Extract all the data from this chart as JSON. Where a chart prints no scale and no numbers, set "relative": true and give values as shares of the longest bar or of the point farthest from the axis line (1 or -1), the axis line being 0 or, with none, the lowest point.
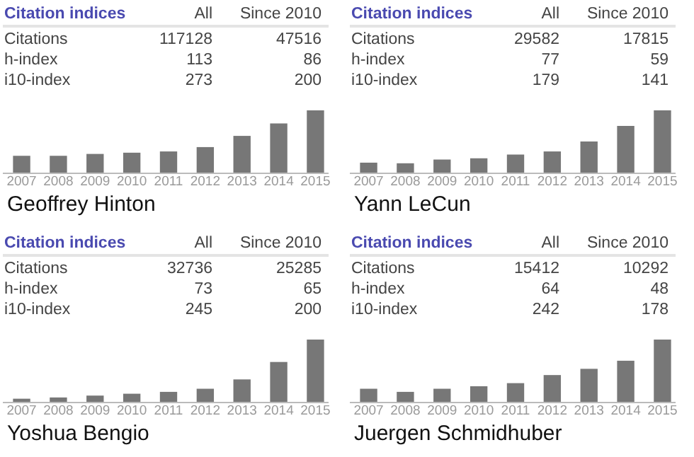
{
  "chart_data": [
    {
      "type": "bar",
      "title": "Citation indices",
      "xlabel": "Geoffrey Hinton",
      "relative": true,
      "color": "#777777",
      "categories": [
        "2007",
        "2008",
        "2009",
        "2010",
        "2011",
        "2012",
        "2013",
        "2014",
        "2015"
      ],
      "values": [
        0.27,
        0.27,
        0.3,
        0.32,
        0.34,
        0.41,
        0.59,
        0.79,
        1
      ],
      "annotations": [
        "All",
        "Since 2010",
        "Citations",
        "117128",
        "47516",
        "h-index",
        "113",
        "86",
        "i10-index",
        "273",
        "200"
      ]
    },
    {
      "type": "bar",
      "title": "Citation indices",
      "xlabel": "Yann LeCun",
      "relative": true,
      "color": "#777777",
      "categories": [
        "2007",
        "2008",
        "2009",
        "2010",
        "2011",
        "2012",
        "2013",
        "2014",
        "2015"
      ],
      "values": [
        0.16,
        0.15,
        0.21,
        0.23,
        0.29,
        0.34,
        0.5,
        0.75,
        1
      ],
      "annotations": [
        "All",
        "Since 2010",
        "Citations",
        "29582",
        "17815",
        "h-index",
        "77",
        "59",
        "i10-index",
        "179",
        "141"
      ]
    },
    {
      "type": "bar",
      "title": "Citation indices",
      "xlabel": "Yoshua Bengio",
      "relative": true,
      "color": "#777777",
      "categories": [
        "2007",
        "2008",
        "2009",
        "2010",
        "2011",
        "2012",
        "2013",
        "2014",
        "2015"
      ],
      "values": [
        0.05,
        0.07,
        0.1,
        0.13,
        0.16,
        0.21,
        0.36,
        0.64,
        1
      ],
      "annotations": [
        "All",
        "Since 2010",
        "Citations",
        "32736",
        "25285",
        "h-index",
        "73",
        "65",
        "i10-index",
        "245",
        "200"
      ]
    },
    {
      "type": "bar",
      "title": "Citation indices",
      "xlabel": "Juergen Schmidhuber",
      "relative": true,
      "color": "#777777",
      "categories": [
        "2007",
        "2008",
        "2009",
        "2010",
        "2011",
        "2012",
        "2013",
        "2014",
        "2015"
      ],
      "values": [
        0.21,
        0.16,
        0.21,
        0.25,
        0.3,
        0.43,
        0.53,
        0.66,
        1
      ],
      "annotations": [
        "All",
        "Since 2010",
        "Citations",
        "15412",
        "10292",
        "h-index",
        "64",
        "48",
        "i10-index",
        "242",
        "178"
      ]
    }
  ]
}
